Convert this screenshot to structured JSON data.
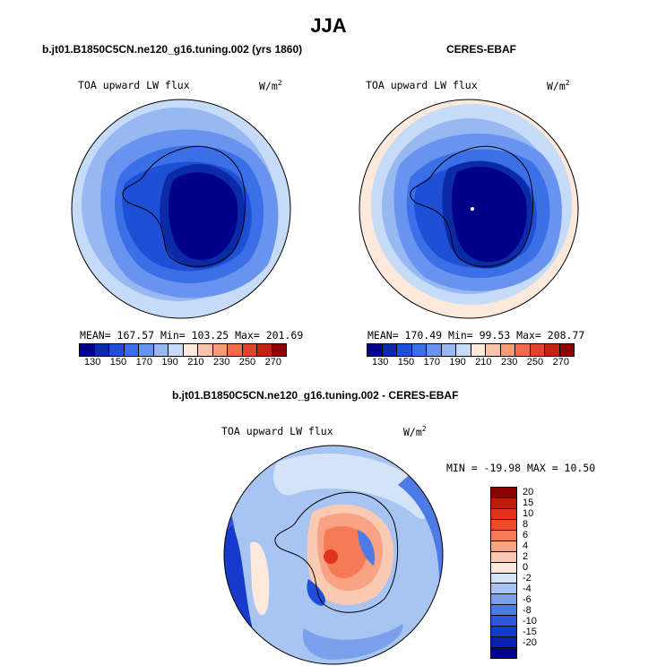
{
  "season": "JJA",
  "panel1": {
    "title": "b.jt01.B1850C5CN.ne120_g16.tuning.002 (yrs 1860)",
    "var_label": "TOA upward LW flux",
    "unit": "W/m",
    "unit_sup": "2",
    "stats": "MEAN= 167.57   Min= 103.25   Max= 201.69"
  },
  "panel2": {
    "title": "CERES-EBAF",
    "var_label": "TOA upward LW flux",
    "unit": "W/m",
    "unit_sup": "2",
    "stats": "MEAN= 170.49   Min=  99.53   Max= 208.77"
  },
  "panel3": {
    "title": "b.jt01.B1850C5CN.ne120_g16.tuning.002 - CERES-EBAF",
    "var_label": "TOA upward LW flux",
    "unit": "W/m",
    "unit_sup": "2",
    "stats": "MIN = -19.98 MAX =  10.50"
  },
  "colorbar_main": {
    "colors": [
      "#00008b",
      "#0a2aa8",
      "#1e4fd6",
      "#3a6fe8",
      "#6893ee",
      "#98b8f2",
      "#c6dbf8",
      "#fde9dc",
      "#fbc4a8",
      "#f79a78",
      "#f06c4a",
      "#e3432a",
      "#c22414",
      "#8b0000"
    ],
    "tick_labels": [
      "130",
      "150",
      "170",
      "190",
      "210",
      "230",
      "250",
      "270"
    ]
  },
  "colorbar_diff": {
    "colors": [
      "#8b0000",
      "#c01a0a",
      "#e0341a",
      "#f04a28",
      "#f57a55",
      "#f8a383",
      "#fbcab3",
      "#fde9dc",
      "#d4e4f8",
      "#a7c4f2",
      "#7aa0ec",
      "#4e7ae6",
      "#2a57dd",
      "#163bcc",
      "#0722b0",
      "#00008b"
    ],
    "tick_labels": [
      "20",
      "15",
      "10",
      "8",
      "6",
      "4",
      "2",
      "0",
      "-2",
      "-4",
      "-6",
      "-8",
      "-10",
      "-15",
      "-20"
    ]
  }
}
